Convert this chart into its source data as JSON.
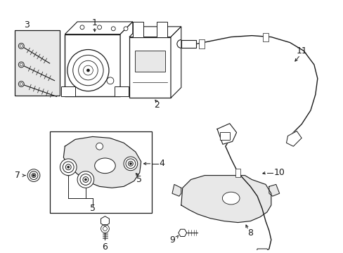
{
  "bg_color": "#ffffff",
  "line_color": "#1a1a1a",
  "gray_fill": "#d0d0d0",
  "light_gray": "#e8e8e8",
  "fig_width": 4.89,
  "fig_height": 3.6,
  "dpi": 100
}
